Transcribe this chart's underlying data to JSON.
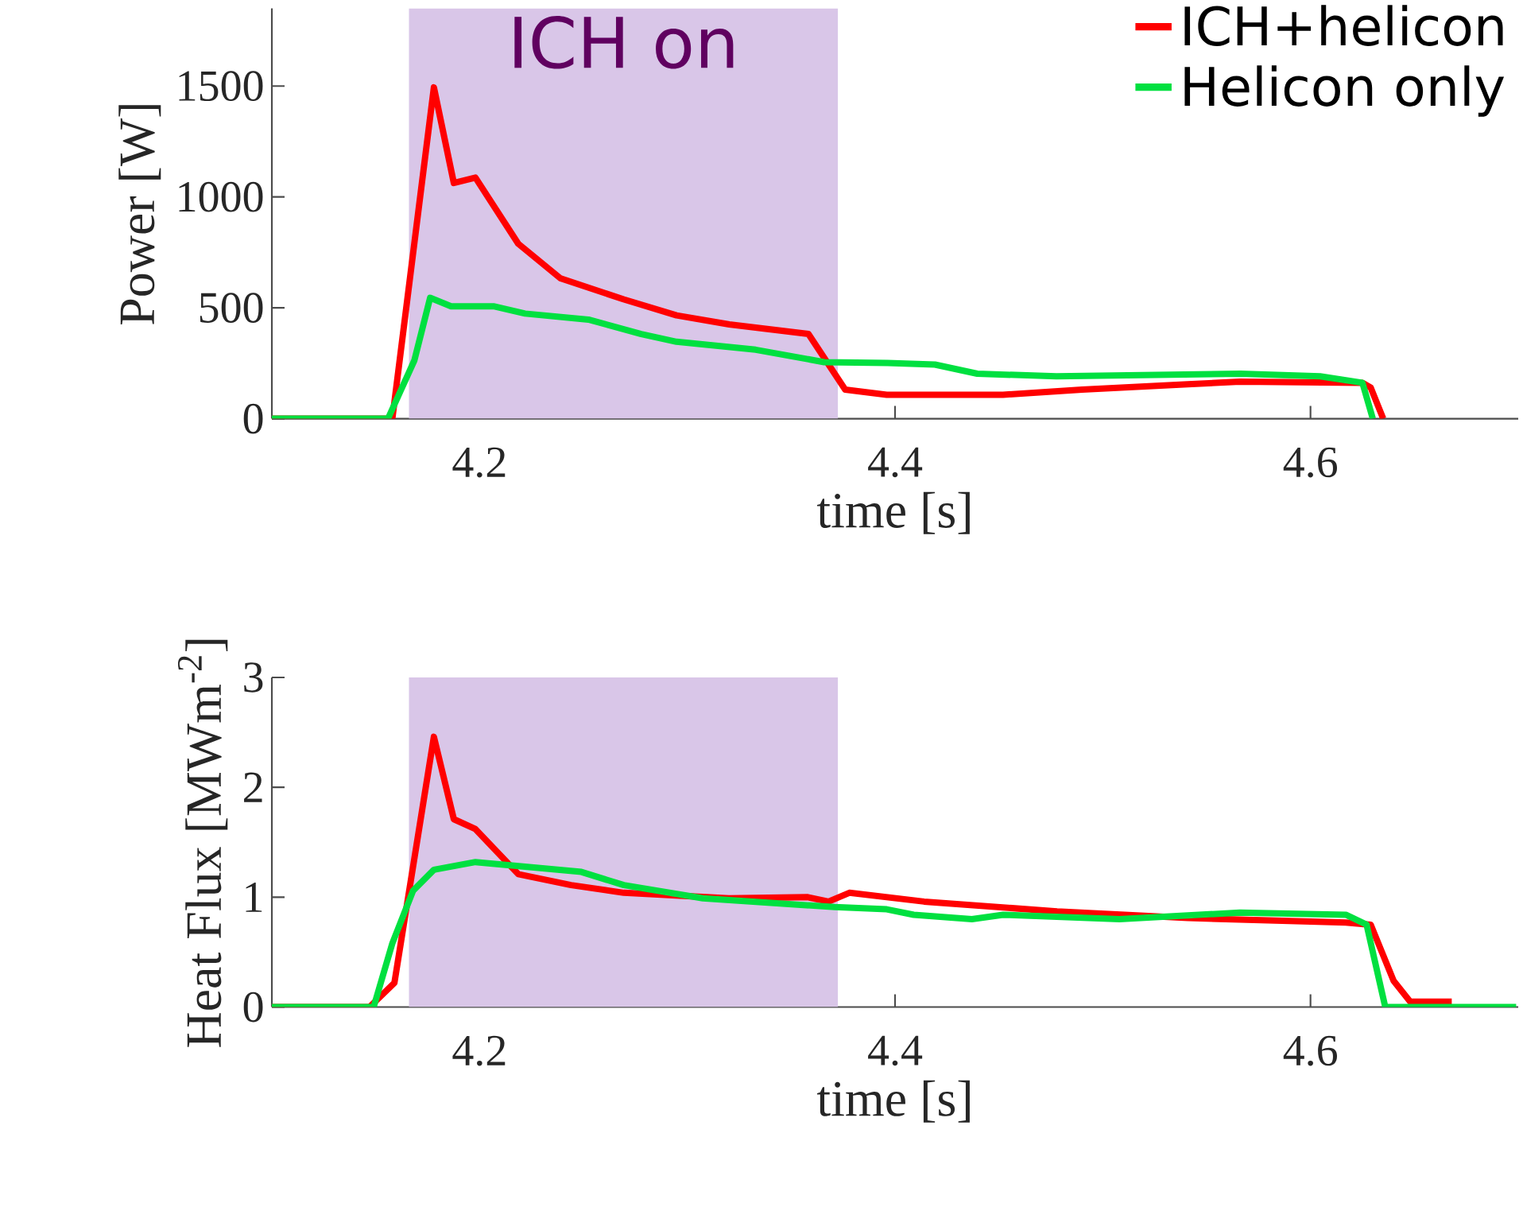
{
  "chart_data": [
    {
      "type": "line",
      "xlabel": "time [s]",
      "ylabel": "Power [W]",
      "xlim": [
        4.1,
        4.7
      ],
      "ylim": [
        0,
        1850
      ],
      "xticks": [
        4.2,
        4.4,
        4.6
      ],
      "yticks": [
        0,
        500,
        1000,
        1500
      ],
      "legend": "top right",
      "grid": false,
      "marker": "none",
      "bands": [
        {
          "axis": "x",
          "from": 4.166,
          "to": 4.3725,
          "label": "ICH on",
          "color": "#d9c6e8"
        }
      ],
      "series": [
        {
          "name": "ICH+helicon",
          "color": "#ff0000",
          "x": [
            4.1,
            4.158,
            4.178,
            4.1876,
            4.198,
            4.2186,
            4.2389,
            4.2694,
            4.2948,
            4.3202,
            4.3583,
            4.376,
            4.396,
            4.452,
            4.49,
            4.541,
            4.566,
            4.625,
            4.629,
            4.635
          ],
          "values": [
            0,
            0,
            1494,
            1063,
            1087,
            789,
            633,
            538,
            466,
            425,
            382,
            131,
            108,
            108,
            131,
            155,
            167,
            162,
            140,
            0
          ]
        },
        {
          "name": "Helicon only",
          "color": "#00e040",
          "x": [
            4.1,
            4.1559,
            4.1686,
            4.1762,
            4.1863,
            4.2067,
            4.2219,
            4.2524,
            4.2778,
            4.2948,
            4.3329,
            4.3659,
            4.3964,
            4.4192,
            4.4396,
            4.4777,
            4.5663,
            4.6046,
            4.625,
            4.63
          ],
          "values": [
            0,
            0,
            263,
            545,
            507,
            507,
            474,
            447,
            382,
            347,
            311,
            255,
            251,
            244,
            203,
            191,
            203,
            191,
            162,
            0
          ]
        }
      ]
    },
    {
      "type": "line",
      "xlabel": "time [s]",
      "ylabel": "Heat Flux [MWm$^{-2}$]",
      "xlim": [
        4.1,
        4.7
      ],
      "ylim": [
        0,
        3
      ],
      "xticks": [
        4.2,
        4.4,
        4.6
      ],
      "yticks": [
        0,
        1,
        2,
        3
      ],
      "grid": false,
      "marker": "none",
      "bands": [
        {
          "axis": "x",
          "from": 4.166,
          "to": 4.3725,
          "color": "#d9c6e8"
        }
      ],
      "series": [
        {
          "color": "#ff0000",
          "x": [
            4.1,
            4.147,
            4.159,
            4.178,
            4.1876,
            4.198,
            4.2186,
            4.244,
            4.2694,
            4.32,
            4.358,
            4.368,
            4.378,
            4.414,
            4.478,
            4.541,
            4.617,
            4.629,
            4.64,
            4.648,
            4.668
          ],
          "values": [
            0,
            0,
            0.22,
            2.46,
            1.71,
            1.62,
            1.21,
            1.11,
            1.04,
            0.99,
            1.0,
            0.96,
            1.04,
            0.96,
            0.87,
            0.81,
            0.77,
            0.75,
            0.24,
            0.05,
            0.05
          ]
        },
        {
          "color": "#00e040",
          "x": [
            4.1,
            4.149,
            4.158,
            4.168,
            4.178,
            4.198,
            4.249,
            4.2694,
            4.3075,
            4.371,
            4.396,
            4.409,
            4.437,
            4.452,
            4.508,
            4.566,
            4.617,
            4.627,
            4.636,
            4.699
          ],
          "values": [
            0,
            0,
            0.58,
            1.06,
            1.25,
            1.32,
            1.23,
            1.11,
            0.99,
            0.91,
            0.89,
            0.84,
            0.8,
            0.84,
            0.8,
            0.86,
            0.84,
            0.75,
            0,
            0
          ]
        }
      ]
    }
  ]
}
